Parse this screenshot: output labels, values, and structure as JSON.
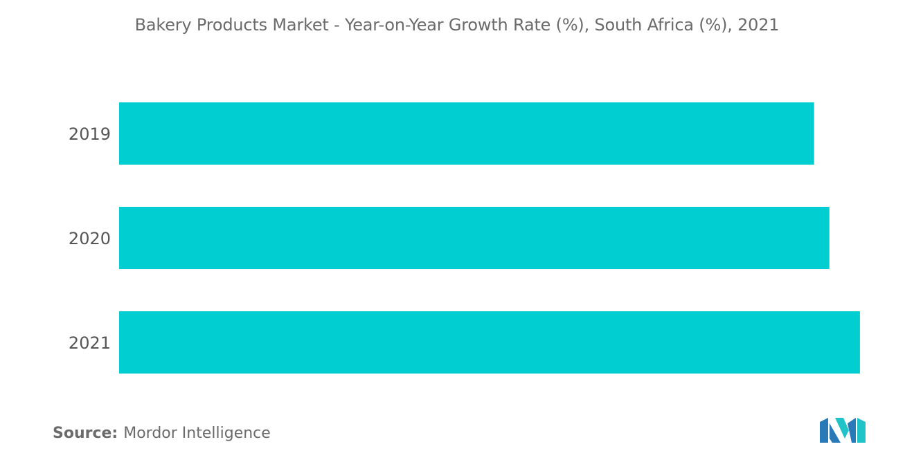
{
  "chart_data": {
    "type": "bar",
    "orientation": "horizontal",
    "title": "Bakery Products Market - Year-on-Year Growth Rate (%), South Africa (%), 2021",
    "categories": [
      "2019",
      "2020",
      "2021"
    ],
    "values": [
      4.55,
      4.65,
      4.85
    ],
    "xlim": [
      0,
      5
    ],
    "xlabel": "",
    "ylabel": "",
    "grid": false,
    "legend": "none",
    "bar_color": "#00ced1"
  },
  "footer": {
    "source_label": "Source:",
    "source_value": "Mordor Intelligence"
  },
  "logo": {
    "icon": "mordor-intelligence-logo",
    "colors": [
      "#2a7ab8",
      "#1fc3c8"
    ]
  }
}
